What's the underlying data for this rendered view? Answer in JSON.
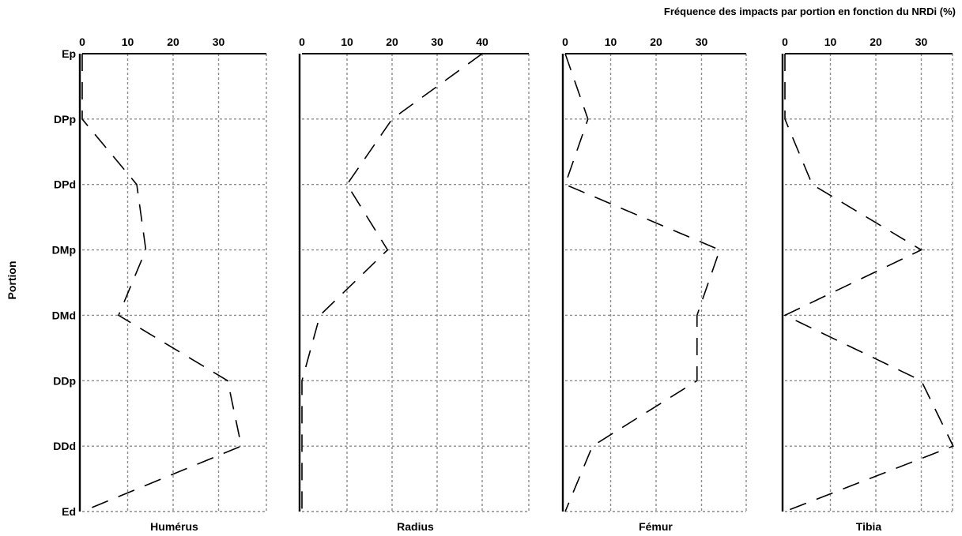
{
  "chart_data": {
    "type": "line",
    "title": "Fréquence des impacts par portion en fonction du NRDi (%)",
    "ylabel": "Portion",
    "portions": [
      "Ep",
      "DPp",
      "DPd",
      "DMp",
      "DMd",
      "DDp",
      "DDd",
      "Ed"
    ],
    "panels": [
      {
        "title": "Humérus",
        "xticks": [
          0,
          10,
          20,
          30
        ],
        "xlim": [
          0,
          40
        ],
        "values": [
          0,
          0,
          12,
          14,
          8,
          32,
          35,
          0
        ]
      },
      {
        "title": "Radius",
        "xticks": [
          0,
          10,
          20,
          30,
          40
        ],
        "xlim": [
          0,
          50
        ],
        "values": [
          40,
          20,
          10,
          19,
          4,
          0,
          0,
          0
        ]
      },
      {
        "title": "Fémur",
        "xticks": [
          0,
          10,
          20,
          30
        ],
        "xlim": [
          0,
          40
        ],
        "values": [
          0,
          5,
          0,
          34,
          29,
          29,
          6,
          0
        ]
      },
      {
        "title": "Tibia",
        "xticks": [
          0,
          10,
          20,
          30
        ],
        "xlim": [
          0,
          40
        ],
        "values": [
          0,
          0,
          6,
          30,
          0,
          30,
          37,
          0
        ]
      }
    ]
  }
}
